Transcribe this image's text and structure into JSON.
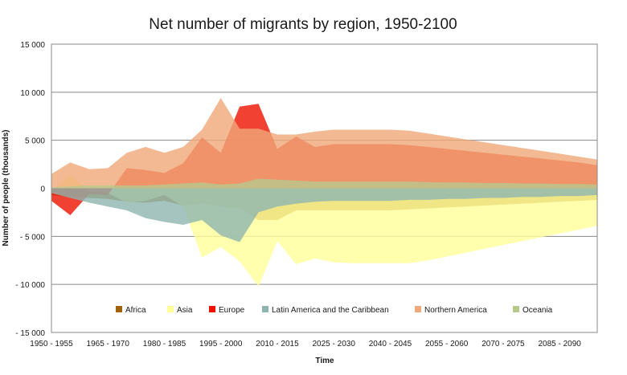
{
  "chart_data": {
    "type": "area",
    "title": "Net number of migrants by region, 1950-2100",
    "xlabel": "Time",
    "ylabel": "Number of people (thousands)",
    "ylim": [
      -15000,
      15000
    ],
    "y_ticks": [
      15000,
      10000,
      5000,
      0,
      -5000,
      -10000,
      -15000
    ],
    "y_tick_labels": [
      "15 000",
      "10 000",
      "5 000",
      "0",
      "- 5 000",
      "- 10 000",
      "- 15 000"
    ],
    "grid": "horizontal",
    "legend_position": "bottom",
    "x_tick_labels": [
      "1950 - 1955",
      "1965 - 1970",
      "1980 - 1985",
      "1995 - 2000",
      "2010 - 2015",
      "2025 - 2030",
      "2040 - 2045",
      "2055 - 2060",
      "2070 - 2075",
      "2085 - 2090"
    ],
    "categories": [
      "1950 - 1955",
      "1955 - 1960",
      "1960 - 1965",
      "1965 - 1970",
      "1970 - 1975",
      "1975 - 1980",
      "1980 - 1985",
      "1985 - 1990",
      "1990 - 1995",
      "1995 - 2000",
      "2000 - 2005",
      "2005 - 2010",
      "2010 - 2015",
      "2015 - 2020",
      "2020 - 2025",
      "2025 - 2030",
      "2030 - 2035",
      "2035 - 2040",
      "2040 - 2045",
      "2045 - 2050",
      "2050 - 2055",
      "2055 - 2060",
      "2060 - 2065",
      "2065 - 2070",
      "2070 - 2075",
      "2075 - 2080",
      "2080 - 2085",
      "2085 - 2090",
      "2090 - 2095",
      "2095 - 2100"
    ],
    "series": [
      {
        "name": "Africa",
        "color": "#a0620a",
        "values": [
          -700,
          -900,
          -1000,
          -1100,
          -1400,
          -1500,
          -1300,
          -1800,
          -1600,
          -1900,
          -2100,
          -3300,
          -3300,
          -2300,
          -2300,
          -2300,
          -2300,
          -2300,
          -2300,
          -2200,
          -2100,
          -2000,
          -1900,
          -1800,
          -1700,
          -1600,
          -1500,
          -1400,
          -1300,
          -1200
        ]
      },
      {
        "name": "Asia",
        "color": "#ffff99",
        "values": [
          -300,
          1400,
          -300,
          -500,
          -1500,
          -1300,
          -700,
          -1900,
          -7200,
          -6100,
          -7600,
          -10200,
          -5500,
          -7900,
          -7300,
          -7700,
          -7800,
          -7800,
          -7800,
          -7800,
          -7500,
          -7100,
          -6700,
          -6300,
          -5900,
          -5500,
          -5100,
          -4700,
          -4300,
          -3900
        ]
      },
      {
        "name": "Europe",
        "color": "#ee1100",
        "values": [
          -1300,
          -2800,
          -600,
          -700,
          2100,
          1900,
          1600,
          2600,
          5300,
          3700,
          8500,
          8800,
          4100,
          5400,
          4300,
          4600,
          4600,
          4600,
          4600,
          4500,
          4300,
          4100,
          3900,
          3700,
          3500,
          3300,
          3100,
          2900,
          2700,
          2400
        ]
      },
      {
        "name": "Latin America and the Caribbean",
        "color": "#8fb5b0",
        "values": [
          -500,
          -1000,
          -1500,
          -1900,
          -2300,
          -3100,
          -3500,
          -3800,
          -3300,
          -4900,
          -5600,
          -2500,
          -1900,
          -1600,
          -1400,
          -1300,
          -1300,
          -1300,
          -1300,
          -1200,
          -1200,
          -1100,
          -1100,
          -1000,
          -1000,
          -900,
          -900,
          -800,
          -800,
          -700
        ]
      },
      {
        "name": "Northern America",
        "color": "#f0a878",
        "values": [
          1500,
          2700,
          2000,
          2100,
          3700,
          4300,
          3700,
          4300,
          6100,
          9400,
          6200,
          6200,
          5600,
          5600,
          5900,
          6100,
          6100,
          6100,
          6100,
          6000,
          5700,
          5400,
          5100,
          4800,
          4500,
          4200,
          3900,
          3600,
          3300,
          3000
        ]
      },
      {
        "name": "Oceania",
        "color": "#b7c98c",
        "values": [
          100,
          200,
          300,
          300,
          300,
          300,
          400,
          500,
          600,
          400,
          500,
          1000,
          900,
          800,
          700,
          700,
          700,
          700,
          700,
          700,
          650,
          600,
          600,
          550,
          550,
          500,
          500,
          450,
          450,
          400
        ]
      }
    ]
  }
}
